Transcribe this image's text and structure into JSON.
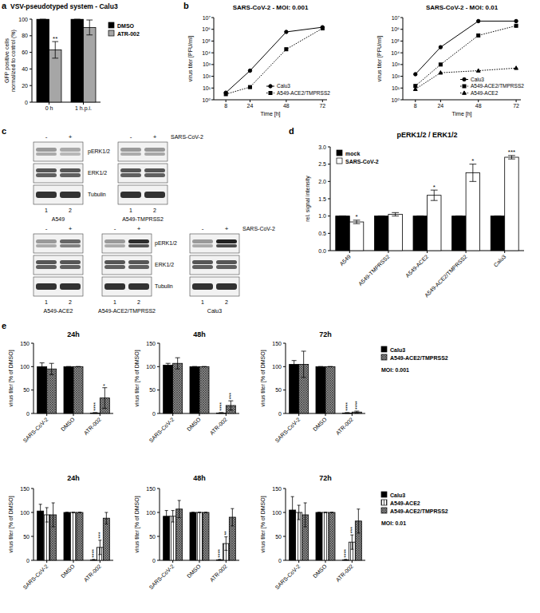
{
  "panel_labels": [
    "a",
    "b",
    "c",
    "d",
    "e"
  ],
  "chart_data": [
    {
      "type": "bar",
      "title": "VSV-pseudotyped system - Calu3",
      "ylabel": [
        "GFP positive cells",
        "normalized to control (%)"
      ],
      "categories": [
        "0 h",
        "1 h.p.i."
      ],
      "series": [
        {
          "name": "DMSO",
          "color": "#000000",
          "values": [
            100,
            100
          ],
          "errors": [
            0,
            0
          ],
          "significance": [
            null,
            null
          ]
        },
        {
          "name": "ATR-002",
          "color": "#a6a6a6",
          "values": [
            63,
            90
          ],
          "errors": [
            10,
            9
          ],
          "significance": [
            "**",
            null
          ]
        }
      ],
      "ylim": [
        0,
        100
      ],
      "yticks": [
        0,
        20,
        40,
        60,
        80,
        100
      ],
      "legend": "right"
    },
    {
      "type": "line",
      "title": "SARS-CoV-2 - MOI: 0.001",
      "xlabel": "Time [h]",
      "ylabel": "virus titer [PFU/ml]",
      "x": [
        8,
        24,
        48,
        72
      ],
      "xlim": [
        0,
        75
      ],
      "xticks": [
        8,
        24,
        48,
        72
      ],
      "log": "y",
      "ylim": [
        1,
        10000000
      ],
      "yticks": [
        {
          "value": 1,
          "label": "10⁰"
        },
        {
          "value": 10,
          "label": "10¹"
        },
        {
          "value": 100,
          "label": "10²"
        },
        {
          "value": 1000,
          "label": "10³"
        },
        {
          "value": 10000,
          "label": "10⁴"
        },
        {
          "value": 100000,
          "label": "10⁵"
        },
        {
          "value": 1000000,
          "label": "10⁶"
        },
        {
          "value": 10000000,
          "label": "10⁷"
        }
      ],
      "legend": "lower right",
      "series": [
        {
          "name": "Calu3",
          "color": "#000000",
          "marker": "circle",
          "line_style": "solid",
          "values": [
            4,
            300,
            600000,
            1500000
          ]
        },
        {
          "name": "A549-ACE2/TMPRSS2",
          "color": "#000000",
          "marker": "square",
          "line_style": "dotted",
          "values": [
            3,
            12,
            20000,
            1200000
          ]
        }
      ]
    },
    {
      "type": "line",
      "title": "SARS-CoV-2 - MOI: 0.01",
      "xlabel": "Time [h]",
      "ylabel": "virus titer [PFU/ml]",
      "x": [
        8,
        24,
        48,
        72
      ],
      "xlim": [
        0,
        75
      ],
      "xticks": [
        8,
        24,
        48,
        72
      ],
      "log": "y",
      "ylim": [
        1,
        10000000
      ],
      "yticks": [
        {
          "value": 1,
          "label": "10⁰"
        },
        {
          "value": 10,
          "label": "10¹"
        },
        {
          "value": 100,
          "label": "10²"
        },
        {
          "value": 1000,
          "label": "10³"
        },
        {
          "value": 10000,
          "label": "10⁴"
        },
        {
          "value": 100000,
          "label": "10⁵"
        },
        {
          "value": 1000000,
          "label": "10⁶"
        },
        {
          "value": 10000000,
          "label": "10⁷"
        }
      ],
      "legend": "lower right",
      "series": [
        {
          "name": "Calu3",
          "color": "#000000",
          "marker": "circle",
          "line_style": "solid",
          "values": [
            150,
            30000,
            5000000,
            5000000
          ]
        },
        {
          "name": "A549-ACE2/TMPRSS2",
          "color": "#000000",
          "marker": "square",
          "line_style": "dotted",
          "values": [
            15,
            1000,
            300000,
            2000000
          ]
        },
        {
          "name": "A549-ACE2",
          "color": "#000000",
          "marker": "triangle",
          "line_style": "dotted",
          "values": [
            8,
            200,
            300,
            500
          ]
        }
      ]
    },
    {
      "type": "bar",
      "title": "pERK1/2 / ERK1/2",
      "ylabel": "rel. signal intensity",
      "categories": [
        "A549",
        "A549-TMPRSS2",
        "A549-ACE2",
        "A549-ACE2/TMPRSS2",
        "Calu3"
      ],
      "series": [
        {
          "name": "mock",
          "color": "#000000",
          "values": [
            1,
            1,
            1,
            1,
            1
          ],
          "errors": [
            0,
            0,
            0,
            0,
            0
          ],
          "significance": [
            null,
            null,
            null,
            null,
            null
          ]
        },
        {
          "name": "SARS-CoV-2",
          "color": "#ffffff",
          "values": [
            0.83,
            1.05,
            1.6,
            2.25,
            2.7
          ],
          "errors": [
            0.05,
            0.05,
            0.15,
            0.25,
            0.05
          ],
          "significance": [
            "*",
            null,
            "*",
            "*",
            "***"
          ]
        }
      ],
      "ylim": [
        0,
        3
      ],
      "yticks": [
        {
          "value": 0,
          "label": "0.0"
        },
        {
          "value": 0.5,
          "label": "0.5"
        },
        {
          "value": 1,
          "label": "1.0"
        },
        {
          "value": 1.5,
          "label": "1.5"
        },
        {
          "value": 2,
          "label": "2.0"
        },
        {
          "value": 2.5,
          "label": "2.5"
        },
        {
          "value": 3,
          "label": "3.0"
        }
      ],
      "legend": "upper left"
    },
    {
      "type": "bar",
      "title": "24h",
      "ylabel": "virus titer [% of DMSO]",
      "categories": [
        "SARS-CoV-2",
        "DMSO",
        "ATR-002"
      ],
      "ylim": [
        0,
        150
      ],
      "yticks": [
        0,
        50,
        100,
        150
      ],
      "series": [
        {
          "name": "Calu3",
          "color": "#000000",
          "values": [
            100,
            100,
            1
          ],
          "errors": [
            8,
            0,
            1
          ],
          "significance": [
            null,
            null,
            "****"
          ]
        },
        {
          "name": "A549-ACE2/TMPRSS2",
          "color": "#8c8c8c",
          "values": [
            95,
            100,
            33
          ],
          "errors": [
            12,
            0,
            22
          ],
          "significance": [
            null,
            null,
            "*"
          ]
        }
      ]
    },
    {
      "type": "bar",
      "title": "48h",
      "ylabel": "virus titer [% of DMSO]",
      "categories": [
        "SARS-CoV-2",
        "DMSO",
        "ATR-002"
      ],
      "ylim": [
        0,
        150
      ],
      "yticks": [
        0,
        50,
        100,
        150
      ],
      "series": [
        {
          "name": "Calu3",
          "color": "#000000",
          "values": [
            103,
            100,
            1
          ],
          "errors": [
            4,
            0,
            1
          ],
          "significance": [
            null,
            null,
            "****"
          ]
        },
        {
          "name": "A549-ACE2/TMPRSS2",
          "color": "#8c8c8c",
          "values": [
            107,
            100,
            17
          ],
          "errors": [
            12,
            0,
            10
          ],
          "significance": [
            null,
            null,
            "***"
          ]
        }
      ]
    },
    {
      "type": "bar",
      "title": "72h",
      "ylabel": "virus titer [% of DMSO]",
      "categories": [
        "SARS-CoV-2",
        "DMSO",
        "ATR-002"
      ],
      "ylim": [
        0,
        150
      ],
      "yticks": [
        0,
        50,
        100,
        150
      ],
      "legend": "right",
      "annotations": [
        "MOI: 0.001"
      ],
      "series": [
        {
          "name": "Calu3",
          "color": "#000000",
          "values": [
            105,
            100,
            1
          ],
          "errors": [
            8,
            0,
            1
          ],
          "significance": [
            null,
            null,
            "****"
          ]
        },
        {
          "name": "A549-ACE2/TMPRSS2",
          "color": "#8c8c8c",
          "values": [
            105,
            100,
            3
          ],
          "errors": [
            28,
            0,
            2
          ],
          "significance": [
            null,
            null,
            "****"
          ]
        }
      ]
    },
    {
      "type": "bar",
      "title": "24h",
      "ylabel": "virus titer [% of DMSO]",
      "categories": [
        "SARS-CoV-2",
        "DMSO",
        "ATR-002"
      ],
      "ylim": [
        0,
        150
      ],
      "yticks": [
        0,
        50,
        100,
        150
      ],
      "series": [
        {
          "name": "Calu3",
          "color": "#000000",
          "values": [
            103,
            100,
            1
          ],
          "errors": [
            14,
            0,
            1
          ],
          "significance": [
            null,
            null,
            "****"
          ]
        },
        {
          "name": "A549-ACE2",
          "color": "#ffffff",
          "values": [
            95,
            100,
            27
          ],
          "errors": [
            15,
            0,
            15
          ],
          "significance": [
            null,
            null,
            "***"
          ]
        },
        {
          "name": "A549-ACE2/TMPRSS2",
          "color": "#8c8c8c",
          "values": [
            95,
            100,
            88
          ],
          "errors": [
            25,
            0,
            12
          ],
          "significance": [
            null,
            null,
            null
          ]
        }
      ]
    },
    {
      "type": "bar",
      "title": "48h",
      "ylabel": "virus titer [% of DMSO]",
      "categories": [
        "SARS-CoV-2",
        "DMSO",
        "ATR-002"
      ],
      "ylim": [
        0,
        150
      ],
      "yticks": [
        0,
        50,
        100,
        150
      ],
      "series": [
        {
          "name": "Calu3",
          "color": "#000000",
          "values": [
            92,
            100,
            1
          ],
          "errors": [
            12,
            0,
            1
          ],
          "significance": [
            null,
            null,
            "****"
          ]
        },
        {
          "name": "A549-ACE2",
          "color": "#ffffff",
          "values": [
            92,
            100,
            35
          ],
          "errors": [
            12,
            0,
            14
          ],
          "significance": [
            null,
            null,
            "**"
          ]
        },
        {
          "name": "A549-ACE2/TMPRSS2",
          "color": "#8c8c8c",
          "values": [
            107,
            100,
            90
          ],
          "errors": [
            18,
            0,
            18
          ],
          "significance": [
            null,
            null,
            null
          ]
        }
      ]
    },
    {
      "type": "bar",
      "title": "72h",
      "ylabel": "virus titer [% of DMSO]",
      "categories": [
        "SARS-CoV-2",
        "DMSO",
        "ATR-002"
      ],
      "ylim": [
        0,
        150
      ],
      "yticks": [
        0,
        50,
        100,
        150
      ],
      "legend": "right",
      "annotations": [
        "MOI: 0.01"
      ],
      "series": [
        {
          "name": "Calu3",
          "color": "#000000",
          "values": [
            105,
            100,
            1
          ],
          "errors": [
            28,
            0,
            1
          ],
          "significance": [
            null,
            null,
            "****"
          ]
        },
        {
          "name": "A549-ACE2",
          "color": "#ffffff",
          "values": [
            100,
            100,
            38
          ],
          "errors": [
            15,
            0,
            15
          ],
          "significance": [
            null,
            null,
            "***"
          ]
        },
        {
          "name": "A549-ACE2/TMPRSS2",
          "color": "#8c8c8c",
          "values": [
            95,
            100,
            82
          ],
          "errors": [
            25,
            0,
            25
          ],
          "significance": [
            null,
            null,
            null
          ]
        }
      ]
    }
  ],
  "blot": {
    "header": "SARS-CoV-2",
    "lanes": [
      "-",
      "+"
    ],
    "lane_numbers": [
      "1",
      "2"
    ],
    "rows": [
      "pERK1/2",
      "ERK1/2",
      "Tubulin"
    ],
    "cell_lines": [
      "A549",
      "A549-TMPRSS2",
      "A549-ACE2",
      "A549-ACE2/TMPRSS2",
      "Calu3"
    ]
  }
}
